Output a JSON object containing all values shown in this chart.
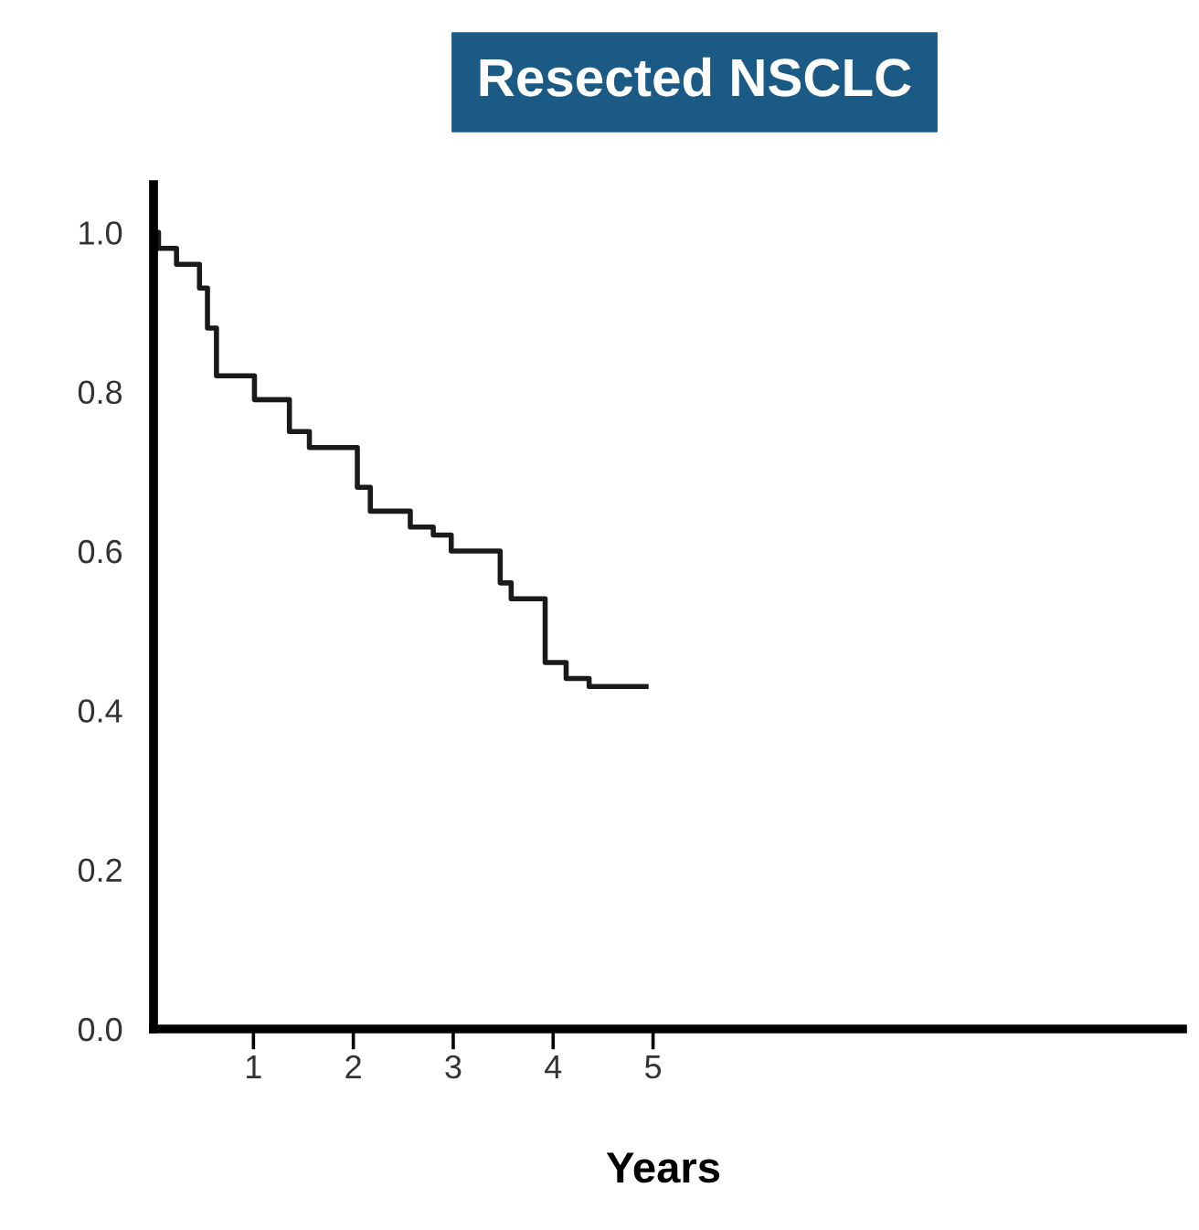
{
  "chart_data": {
    "type": "step",
    "title": "Resected NSCLC",
    "xlabel": "Years",
    "x": [
      0.0,
      0.05,
      0.23,
      0.46,
      0.54,
      0.63,
      1.01,
      1.36,
      1.56,
      2.04,
      2.17,
      2.57,
      2.8,
      2.98,
      3.23,
      3.47,
      3.58,
      3.92,
      4.13,
      4.36,
      4.93
    ],
    "series": [
      {
        "color": "#1a1a1a",
        "values": [
          1.0,
          0.98,
          0.96,
          0.93,
          0.88,
          0.82,
          0.79,
          0.75,
          0.73,
          0.68,
          0.65,
          0.63,
          0.62,
          0.6,
          0.6,
          0.56,
          0.54,
          0.46,
          0.44,
          0.43,
          0.43
        ]
      }
    ],
    "xlim": [
      0,
      10.3
    ],
    "xticks": [
      1,
      2,
      3,
      4,
      5
    ],
    "ylim": [
      0,
      1.06
    ],
    "yticks": [
      {
        "value": 0,
        "label": "0.0"
      },
      {
        "value": 0.2,
        "label": "0.2"
      },
      {
        "value": 0.4,
        "label": "0.4"
      },
      {
        "value": 0.6,
        "label": "0.6"
      },
      {
        "value": 0.8,
        "label": "0.8"
      },
      {
        "value": 1.0,
        "label": "1.0"
      }
    ],
    "grid": false,
    "legend": false
  }
}
